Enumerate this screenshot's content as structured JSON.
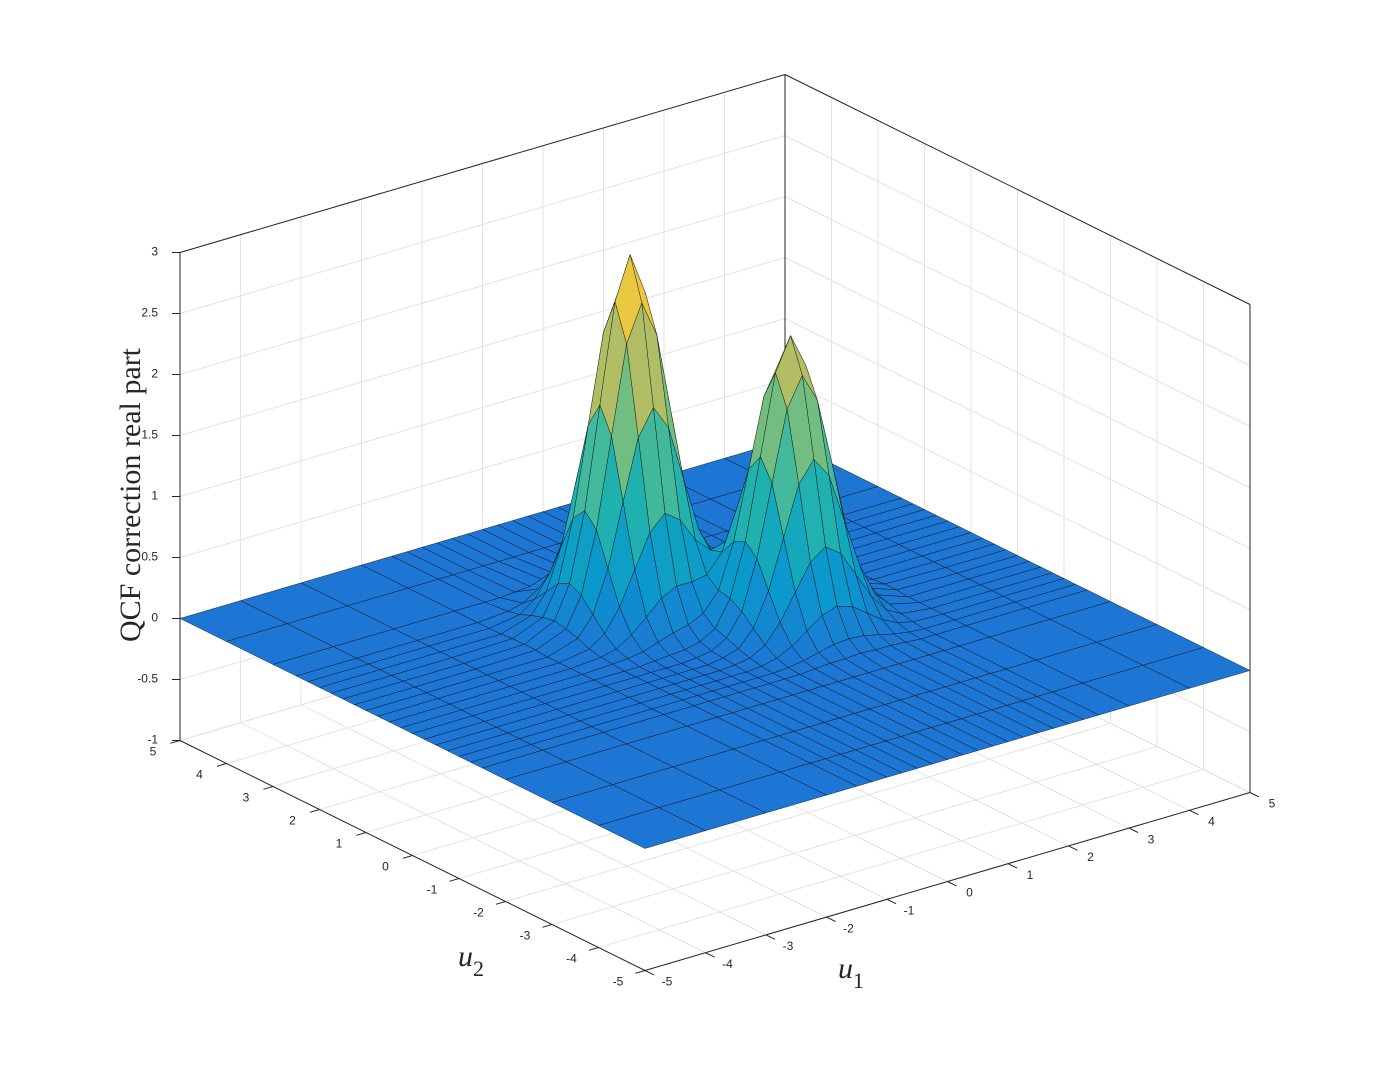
{
  "chart_data": {
    "type": "surface",
    "zlabel": "QCF correction real part",
    "xlabel": {
      "text": "u",
      "subscript": "1"
    },
    "ylabel": {
      "text": "u",
      "subscript": "2"
    },
    "colormap": "parula",
    "edgecolor": "#000000",
    "grid": true,
    "xlim": [
      -5,
      5
    ],
    "ylim": [
      -5,
      5
    ],
    "zlim": [
      -1,
      3
    ],
    "xticks": [
      -5,
      -4,
      -3,
      -2,
      -1,
      0,
      1,
      2,
      3,
      4,
      5
    ],
    "yticks": [
      -5,
      -4,
      -3,
      -2,
      -1,
      0,
      1,
      2,
      3,
      4,
      5
    ],
    "zticks": [
      -1,
      -0.5,
      0,
      0.5,
      1,
      1.5,
      2,
      2.5,
      3
    ],
    "x": [
      -5,
      -4,
      -3,
      -2,
      -1.5,
      -1.25,
      -1,
      -0.75,
      -0.5,
      -0.25,
      0,
      0.25,
      0.5,
      0.75,
      1,
      1.25,
      1.5,
      1.75,
      2,
      2.25,
      2.5,
      3,
      4,
      5
    ],
    "y": [
      -5,
      -4,
      -3,
      -2,
      -1.5,
      -1.25,
      -1,
      -0.75,
      -0.5,
      -0.25,
      0,
      0.25,
      0.5,
      0.75,
      1,
      1.25,
      1.5,
      1.75,
      2,
      2.25,
      2.5,
      3,
      4,
      5
    ],
    "z": [
      [
        0,
        0,
        0,
        0,
        0,
        0,
        0,
        0,
        0,
        0,
        0,
        0,
        0,
        0,
        0,
        0,
        0,
        0,
        0,
        0,
        0,
        0,
        0,
        0
      ],
      [
        0,
        0,
        0,
        0,
        0,
        0,
        0,
        0,
        0,
        0,
        0,
        0,
        0,
        0,
        0,
        0,
        0,
        0,
        0,
        0,
        0,
        0,
        0,
        0
      ],
      [
        0,
        0,
        0,
        0,
        0,
        0,
        0,
        0,
        0,
        0,
        0,
        0,
        0,
        0,
        0,
        0,
        0,
        0,
        0,
        0,
        0,
        0,
        0,
        0
      ],
      [
        0,
        0,
        0,
        0,
        0,
        0,
        0,
        0,
        0,
        0,
        0,
        0,
        0,
        0,
        0,
        0,
        0,
        0,
        0,
        0,
        0,
        0,
        0,
        0
      ],
      [
        0,
        0,
        0,
        0,
        0,
        0,
        0,
        0,
        0,
        0,
        0,
        0,
        0.01,
        0.02,
        0.02,
        0.03,
        0.02,
        0.02,
        0.01,
        0,
        0,
        0,
        0,
        0
      ],
      [
        0,
        0,
        0,
        0,
        0,
        0,
        0,
        0,
        0,
        0,
        0,
        0.01,
        0.03,
        0.06,
        0.09,
        0.1,
        0.09,
        0.06,
        0.03,
        0.01,
        0,
        0,
        0,
        0
      ],
      [
        0,
        0,
        0,
        0,
        0,
        0,
        0,
        0,
        0,
        0,
        0.01,
        0.04,
        0.1,
        0.19,
        0.28,
        0.32,
        0.28,
        0.19,
        0.1,
        0.04,
        0.01,
        0,
        0,
        0
      ],
      [
        0,
        0,
        0,
        0,
        0,
        0,
        0,
        0,
        0,
        0.01,
        0.03,
        0.1,
        0.25,
        0.46,
        0.67,
        0.76,
        0.67,
        0.46,
        0.25,
        0.1,
        0.03,
        0,
        0,
        0
      ],
      [
        0,
        0,
        0,
        0,
        0,
        0,
        0,
        0,
        0,
        0.02,
        0.06,
        0.19,
        0.46,
        0.86,
        1.26,
        1.43,
        1.26,
        0.86,
        0.46,
        0.19,
        0.06,
        0,
        0,
        0
      ],
      [
        0,
        0,
        0,
        0,
        0,
        0,
        0,
        0,
        0.01,
        0.03,
        0.1,
        0.28,
        0.68,
        1.26,
        1.83,
        2.07,
        1.83,
        1.26,
        0.67,
        0.28,
        0.09,
        0,
        0,
        0
      ],
      [
        0,
        0,
        0,
        0,
        0,
        0,
        0.01,
        0.02,
        0.03,
        0.06,
        0.13,
        0.34,
        0.77,
        1.43,
        2.08,
        2.35,
        2.07,
        1.43,
        0.76,
        0.32,
        0.1,
        0.01,
        0,
        0
      ],
      [
        0,
        0,
        0,
        0,
        0.01,
        0.02,
        0.04,
        0.08,
        0.12,
        0.15,
        0.21,
        0.36,
        0.72,
        1.28,
        1.84,
        2.08,
        1.83,
        1.26,
        0.67,
        0.28,
        0.09,
        0.01,
        0,
        0
      ],
      [
        0,
        0,
        0,
        0,
        0.02,
        0.05,
        0.13,
        0.24,
        0.36,
        0.42,
        0.42,
        0.44,
        0.59,
        0.92,
        1.28,
        1.43,
        1.26,
        0.86,
        0.46,
        0.19,
        0.06,
        0,
        0,
        0
      ],
      [
        0,
        0,
        0,
        0,
        0.04,
        0.13,
        0.31,
        0.58,
        0.85,
        0.97,
        0.88,
        0.68,
        0.56,
        0.59,
        0.72,
        0.77,
        0.68,
        0.46,
        0.25,
        0.1,
        0.03,
        0,
        0,
        0
      ],
      [
        0,
        0,
        0,
        0,
        0.08,
        0.24,
        0.58,
        1.09,
        1.58,
        1.79,
        1.59,
        1.13,
        0.68,
        0.44,
        0.36,
        0.34,
        0.28,
        0.19,
        0.1,
        0.04,
        0.01,
        0,
        0,
        0
      ],
      [
        0,
        0,
        0,
        0.01,
        0.11,
        0.35,
        0.85,
        1.58,
        2.3,
        2.6,
        2.3,
        1.59,
        0.88,
        0.41,
        0.2,
        0.13,
        0.1,
        0.06,
        0.03,
        0.01,
        0,
        0,
        0,
        0
      ],
      [
        0,
        0,
        0,
        0.01,
        0.13,
        0.4,
        0.96,
        1.79,
        2.6,
        2.95,
        2.6,
        1.79,
        0.97,
        0.42,
        0.15,
        0.06,
        0.03,
        0.02,
        0.01,
        0,
        0,
        0,
        0,
        0
      ],
      [
        0,
        0,
        0,
        0.01,
        0.11,
        0.35,
        0.85,
        1.58,
        2.3,
        2.6,
        2.3,
        1.58,
        0.85,
        0.35,
        0.11,
        0.03,
        0.01,
        0,
        0,
        0,
        0,
        0,
        0,
        0
      ],
      [
        0,
        0,
        0,
        0,
        0.08,
        0.24,
        0.58,
        1.09,
        1.58,
        1.79,
        1.58,
        1.09,
        0.58,
        0.24,
        0.08,
        0.02,
        0,
        0,
        0,
        0,
        0,
        0,
        0,
        0
      ],
      [
        0,
        0,
        0,
        0,
        0.04,
        0.13,
        0.31,
        0.58,
        0.85,
        0.96,
        0.85,
        0.58,
        0.31,
        0.13,
        0.04,
        0.01,
        0,
        0,
        0,
        0,
        0,
        0,
        0,
        0
      ],
      [
        0,
        0,
        0,
        0,
        0.02,
        0.05,
        0.13,
        0.24,
        0.35,
        0.4,
        0.35,
        0.24,
        0.13,
        0.05,
        0.02,
        0,
        0,
        0,
        0,
        0,
        0,
        0,
        0,
        0
      ],
      [
        0,
        0,
        0,
        0,
        0,
        0,
        0.01,
        0.02,
        0.03,
        0.03,
        0.03,
        0.02,
        0.01,
        0,
        0,
        0,
        0,
        0,
        0,
        0,
        0,
        0,
        0,
        0
      ],
      [
        0,
        0,
        0,
        0,
        0,
        0,
        0,
        0,
        0,
        0,
        0,
        0,
        0,
        0,
        0,
        0,
        0,
        0,
        0,
        0,
        0,
        0,
        0,
        0
      ],
      [
        0,
        0,
        0,
        0,
        0,
        0,
        0,
        0,
        0,
        0,
        0,
        0,
        0,
        0,
        0,
        0,
        0,
        0,
        0,
        0,
        0,
        0,
        0,
        0
      ]
    ]
  }
}
